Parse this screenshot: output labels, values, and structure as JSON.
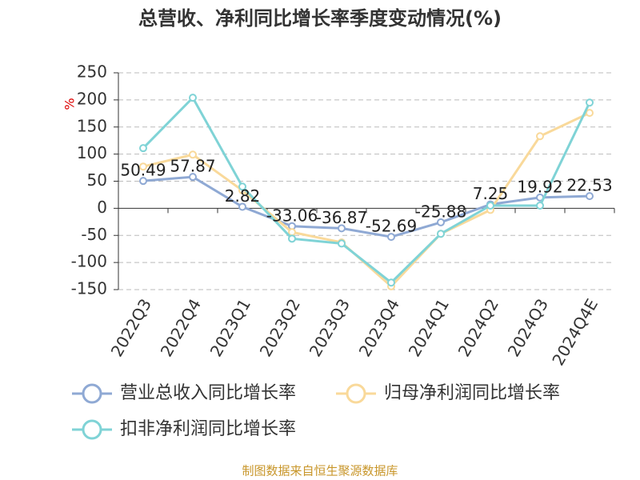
{
  "chart_data": {
    "type": "line",
    "title": "总营收、净利同比增长率季度变动情况(%)",
    "y_label": "%",
    "source": "制图数据来自恒生聚源数据库",
    "categories": [
      "2022Q3",
      "2022Q4",
      "2023Q1",
      "2023Q2",
      "2023Q3",
      "2023Q4",
      "2024Q1",
      "2024Q2",
      "2024Q3",
      "2024Q4E"
    ],
    "series": [
      {
        "name": "营业总收入同比增长率",
        "color": "#8fa9d4",
        "values": [
          50.49,
          57.87,
          2.82,
          -33.06,
          -36.87,
          -52.69,
          -25.88,
          7.25,
          19.92,
          22.53
        ],
        "show_labels": true
      },
      {
        "name": "归母净利润同比增长率",
        "color": "#f9d99a",
        "values": [
          77,
          99,
          33,
          -44,
          -63,
          -144,
          -47,
          -3,
          133,
          176
        ]
      },
      {
        "name": "扣非净利润同比增长率",
        "color": "#7fd3d6",
        "values": [
          111,
          204,
          40,
          -56,
          -65,
          -137,
          -47,
          5,
          5,
          195
        ]
      }
    ],
    "ylim": [
      -150,
      250
    ],
    "yticks": [
      -150,
      -100,
      -50,
      0,
      50,
      100,
      150,
      200,
      250
    ],
    "grid": true
  }
}
